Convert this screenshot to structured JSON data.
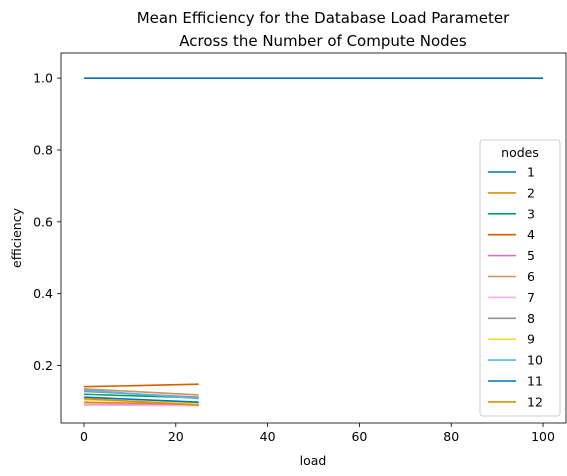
{
  "chart_data": {
    "type": "line",
    "title": "Mean Efficiency for the Database Load Parameter\nAcross the Number of Compute Nodes",
    "xlabel": "load",
    "ylabel": "efficiency",
    "xlim": [
      -5,
      105
    ],
    "ylim": [
      0.04,
      1.07
    ],
    "xticks": [
      0,
      20,
      40,
      60,
      80,
      100
    ],
    "yticks": [
      0.2,
      0.4,
      0.6,
      0.8,
      1.0
    ],
    "ytick_labels": [
      "0.2",
      "0.4",
      "0.6",
      "0.8",
      "1.0"
    ],
    "grid": false,
    "legend": {
      "title": "nodes",
      "placement": "center-right"
    },
    "series": [
      {
        "name": "1",
        "color": "#0173b2",
        "x": [
          0,
          25,
          100
        ],
        "y": [
          1.0,
          1.0,
          1.0
        ]
      },
      {
        "name": "2",
        "color": "#de8f05",
        "x": [
          0,
          25
        ],
        "y": [
          0.098,
          0.092
        ]
      },
      {
        "name": "3",
        "color": "#029e73",
        "x": [
          0,
          25
        ],
        "y": [
          0.12,
          0.11
        ]
      },
      {
        "name": "4",
        "color": "#d55e00",
        "x": [
          0,
          25
        ],
        "y": [
          0.141,
          0.148
        ]
      },
      {
        "name": "5",
        "color": "#cc78bc",
        "x": [
          0,
          25
        ],
        "y": [
          0.092,
          0.09
        ]
      },
      {
        "name": "6",
        "color": "#ca9161",
        "x": [
          0,
          25
        ],
        "y": [
          0.135,
          0.118
        ]
      },
      {
        "name": "7",
        "color": "#fbafe4",
        "x": [
          0,
          25
        ],
        "y": [
          0.09,
          0.088
        ]
      },
      {
        "name": "8",
        "color": "#949494",
        "x": [
          0,
          25
        ],
        "y": [
          0.128,
          0.112
        ]
      },
      {
        "name": "9",
        "color": "#ece133",
        "x": [
          0,
          25
        ],
        "y": [
          0.105,
          0.094
        ]
      },
      {
        "name": "10",
        "color": "#56b4e9",
        "x": [
          0,
          25
        ],
        "y": [
          0.132,
          0.108
        ]
      },
      {
        "name": "11",
        "color": "#0173b2",
        "x": [
          0,
          25
        ],
        "y": [
          0.112,
          0.098
        ]
      },
      {
        "name": "12",
        "color": "#de8f05",
        "x": [
          0,
          25
        ],
        "y": [
          0.108,
          0.09
        ]
      }
    ]
  }
}
